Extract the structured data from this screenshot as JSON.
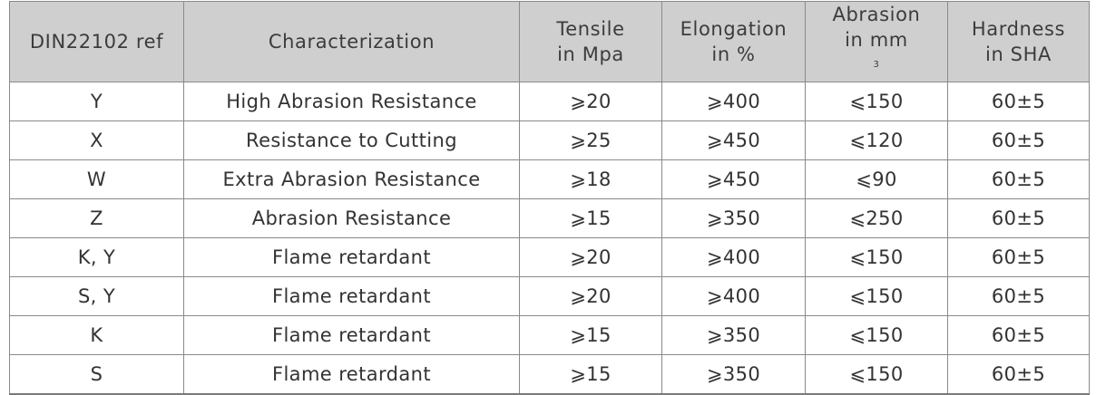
{
  "table": {
    "headers": [
      {
        "lines": [
          "DIN22102 ref"
        ]
      },
      {
        "lines": [
          "Characterization"
        ]
      },
      {
        "lines": [
          "Tensile",
          "in Mpa"
        ]
      },
      {
        "lines": [
          "Elongation",
          "in %"
        ]
      },
      {
        "lines": [
          "Abrasion",
          "in mm"
        ],
        "superscript": "3"
      },
      {
        "lines": [
          "Hardness",
          "in SHA"
        ]
      }
    ],
    "rows": [
      {
        "ref": "Y",
        "characterization": "High Abrasion Resistance",
        "tensile": "⩾20",
        "elongation": "⩾400",
        "abrasion": "⩽150",
        "hardness": "60±5"
      },
      {
        "ref": "X",
        "characterization": "Resistance to Cutting",
        "tensile": "⩾25",
        "elongation": "⩾450",
        "abrasion": "⩽120",
        "hardness": "60±5"
      },
      {
        "ref": "W",
        "characterization": "Extra Abrasion Resistance",
        "tensile": "⩾18",
        "elongation": "⩾450",
        "abrasion": "⩽90",
        "hardness": "60±5"
      },
      {
        "ref": "Z",
        "characterization": "Abrasion Resistance",
        "tensile": "⩾15",
        "elongation": "⩾350",
        "abrasion": "⩽250",
        "hardness": "60±5"
      },
      {
        "ref": "K, Y",
        "characterization": "Flame retardant",
        "tensile": "⩾20",
        "elongation": "⩾400",
        "abrasion": "⩽150",
        "hardness": "60±5"
      },
      {
        "ref": "S, Y",
        "characterization": "Flame retardant",
        "tensile": "⩾20",
        "elongation": "⩾400",
        "abrasion": "⩽150",
        "hardness": "60±5"
      },
      {
        "ref": "K",
        "characterization": "Flame retardant",
        "tensile": "⩾15",
        "elongation": "⩾350",
        "abrasion": "⩽150",
        "hardness": "60±5"
      },
      {
        "ref": "S",
        "characterization": "Flame retardant",
        "tensile": "⩾15",
        "elongation": "⩾350",
        "abrasion": "⩽150",
        "hardness": "60±5"
      }
    ]
  }
}
